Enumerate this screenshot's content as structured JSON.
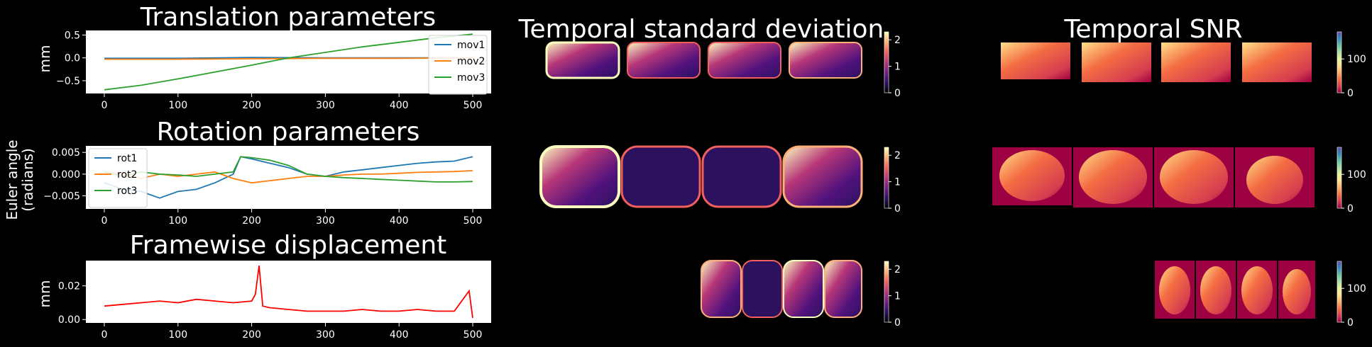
{
  "figure": {
    "background": "#000000",
    "euler_label_line1": "Euler angle",
    "euler_label_line2": "(radians)"
  },
  "chart_data": [
    {
      "id": "translation",
      "type": "line",
      "title": "Translation parameters",
      "ylabel": "mm",
      "xlim": [
        -25,
        525
      ],
      "ylim": [
        -0.78,
        0.6
      ],
      "xticks": [
        0,
        100,
        200,
        300,
        400,
        500
      ],
      "xtick_labels": [
        "0",
        "100",
        "200",
        "300",
        "400",
        "500"
      ],
      "yticks": [
        -0.5,
        0.0,
        0.5
      ],
      "ytick_labels": [
        "−0.5",
        "0.0",
        "0.5"
      ],
      "legend": "upper-right",
      "series": [
        {
          "name": "mov1",
          "color": "#1f77b4",
          "x": [
            0,
            100,
            200,
            300,
            400,
            500
          ],
          "y": [
            -0.01,
            -0.01,
            0.01,
            0.0,
            0.0,
            0.0
          ]
        },
        {
          "name": "mov2",
          "color": "#ff7f0e",
          "x": [
            0,
            100,
            200,
            300,
            400,
            500
          ],
          "y": [
            -0.03,
            -0.03,
            -0.02,
            -0.01,
            -0.01,
            0.0
          ]
        },
        {
          "name": "mov3",
          "color": "#2ca02c",
          "x": [
            0,
            50,
            100,
            150,
            200,
            250,
            300,
            350,
            400,
            450,
            500
          ],
          "y": [
            -0.7,
            -0.6,
            -0.46,
            -0.31,
            -0.16,
            0.0,
            0.12,
            0.24,
            0.34,
            0.44,
            0.52
          ]
        }
      ]
    },
    {
      "id": "rotation",
      "type": "line",
      "title": "Rotation parameters",
      "ylabel": "",
      "xlim": [
        -25,
        525
      ],
      "ylim": [
        -0.008,
        0.0065
      ],
      "xticks": [
        0,
        100,
        200,
        300,
        400,
        500
      ],
      "xtick_labels": [
        "0",
        "100",
        "200",
        "300",
        "400",
        "500"
      ],
      "yticks": [
        -0.005,
        0.0,
        0.005
      ],
      "ytick_labels": [
        "−0.005",
        "0.000",
        "0.005"
      ],
      "legend": "upper-left",
      "series": [
        {
          "name": "rot1",
          "color": "#1f77b4",
          "x": [
            0,
            25,
            50,
            75,
            100,
            125,
            150,
            175,
            185,
            200,
            225,
            250,
            275,
            300,
            325,
            350,
            375,
            400,
            425,
            450,
            475,
            500
          ],
          "y": [
            -0.002,
            -0.0035,
            -0.004,
            -0.0055,
            -0.004,
            -0.0035,
            -0.002,
            0.0,
            0.004,
            0.0035,
            0.0025,
            0.0015,
            0.0,
            -0.0005,
            0.0005,
            0.001,
            0.0015,
            0.002,
            0.0025,
            0.0028,
            0.003,
            0.004
          ]
        },
        {
          "name": "rot2",
          "color": "#ff7f0e",
          "x": [
            0,
            25,
            50,
            75,
            100,
            125,
            150,
            175,
            200,
            225,
            250,
            275,
            300,
            325,
            350,
            375,
            400,
            425,
            450,
            475,
            500
          ],
          "y": [
            0.0005,
            0.0,
            -0.001,
            0.0,
            -0.0005,
            0.0,
            0.0005,
            -0.001,
            -0.002,
            -0.0015,
            -0.001,
            -0.0005,
            -0.0005,
            -0.0002,
            0.0,
            0.0,
            0.0002,
            0.0004,
            0.0005,
            0.0006,
            0.0008
          ]
        },
        {
          "name": "rot3",
          "color": "#2ca02c",
          "x": [
            0,
            25,
            50,
            75,
            100,
            125,
            150,
            175,
            185,
            200,
            225,
            250,
            275,
            300,
            325,
            350,
            375,
            400,
            425,
            450,
            475,
            500
          ],
          "y": [
            0.0005,
            -0.0005,
            0.0005,
            0.0,
            -0.0002,
            -0.0005,
            0.0,
            0.0005,
            0.004,
            0.0038,
            0.0032,
            0.002,
            0.0,
            -0.0005,
            -0.0008,
            -0.001,
            -0.0012,
            -0.0014,
            -0.0016,
            -0.0018,
            -0.0018,
            -0.0017
          ]
        }
      ]
    },
    {
      "id": "framewise",
      "type": "line",
      "title": "Framewise displacement",
      "ylabel": "mm",
      "xlim": [
        -25,
        525
      ],
      "ylim": [
        -0.002,
        0.035
      ],
      "xticks": [
        0,
        100,
        200,
        300,
        400,
        500
      ],
      "xtick_labels": [
        "0",
        "100",
        "200",
        "300",
        "400",
        "500"
      ],
      "yticks": [
        0.0,
        0.02
      ],
      "ytick_labels": [
        "0.00",
        "0.02"
      ],
      "series": [
        {
          "name": "",
          "color": "#ff0000",
          "x": [
            0,
            25,
            50,
            75,
            100,
            125,
            150,
            175,
            200,
            205,
            210,
            215,
            225,
            250,
            275,
            300,
            325,
            350,
            375,
            400,
            425,
            450,
            475,
            495,
            500
          ],
          "y": [
            0.008,
            0.009,
            0.01,
            0.011,
            0.01,
            0.012,
            0.011,
            0.01,
            0.011,
            0.015,
            0.032,
            0.008,
            0.007,
            0.006,
            0.005,
            0.005,
            0.005,
            0.006,
            0.005,
            0.005,
            0.006,
            0.005,
            0.005,
            0.017,
            0.001
          ]
        }
      ]
    },
    {
      "id": "tstd_colorbars",
      "type": "heatmap",
      "title": "Temporal standard deviation",
      "colorbar_ticks": [
        "0",
        "1",
        "2"
      ],
      "colorbar_range": [
        0,
        2.3
      ],
      "colormap": [
        "#000004",
        "#2c115f",
        "#721f81",
        "#b73779",
        "#f1605d",
        "#feb078",
        "#fcfdbf"
      ]
    },
    {
      "id": "tsnr_colorbars",
      "type": "heatmap",
      "title": "Temporal SNR",
      "colorbar_ticks": [
        "0",
        "100"
      ],
      "colorbar_range": [
        0,
        180
      ],
      "colormap": [
        "#9e0142",
        "#d53e4f",
        "#f46d43",
        "#fdae61",
        "#fee08b",
        "#e6f598",
        "#abdda4",
        "#66c2a5",
        "#3288bd",
        "#5e4fa2"
      ]
    }
  ]
}
